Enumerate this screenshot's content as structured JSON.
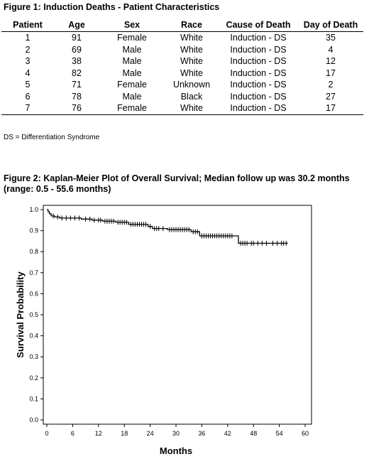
{
  "figure1": {
    "title": "Figure 1: Induction Deaths - Patient Characteristics",
    "headers": [
      "Patient",
      "Age",
      "Sex",
      "Race",
      "Cause of Death",
      "Day of Death"
    ],
    "rows": [
      [
        "1",
        "91",
        "Female",
        "White",
        "Induction - DS",
        "35"
      ],
      [
        "2",
        "69",
        "Male",
        "White",
        "Induction - DS",
        "4"
      ],
      [
        "3",
        "38",
        "Male",
        "White",
        "Induction - DS",
        "12"
      ],
      [
        "4",
        "82",
        "Male",
        "White",
        "Induction - DS",
        "17"
      ],
      [
        "5",
        "71",
        "Female",
        "Unknown",
        "Induction - DS",
        "2"
      ],
      [
        "6",
        "78",
        "Male",
        "Black",
        "Induction - DS",
        "27"
      ],
      [
        "7",
        "76",
        "Female",
        "White",
        "Induction - DS",
        "17"
      ]
    ],
    "footnote": "DS = Differentiation Syndrome"
  },
  "figure2": {
    "title": "Figure 2: Kaplan-Meier Plot of Overall Survival; Median follow up was 30.2 months (range: 0.5 - 55.6 months)"
  },
  "chart_data": {
    "type": "line",
    "xlabel": "Months",
    "ylabel": "Survival Probability",
    "xlim": [
      0,
      60
    ],
    "ylim": [
      0.0,
      1.0
    ],
    "xticks": [
      0,
      6,
      12,
      18,
      24,
      30,
      36,
      42,
      48,
      54,
      60
    ],
    "yticks": [
      "0.0",
      "0.1",
      "0.2",
      "0.3",
      "0.4",
      "0.5",
      "0.6",
      "0.7",
      "0.8",
      "0.9",
      "1.0"
    ],
    "grid": false,
    "series": [
      {
        "step_points": [
          [
            0,
            1.0
          ],
          [
            0.3,
            0.99
          ],
          [
            0.6,
            0.98
          ],
          [
            1.0,
            0.97
          ],
          [
            1.8,
            0.965
          ],
          [
            3.0,
            0.96
          ],
          [
            8.0,
            0.955
          ],
          [
            10.5,
            0.95
          ],
          [
            13.0,
            0.945
          ],
          [
            16.0,
            0.94
          ],
          [
            19.0,
            0.93
          ],
          [
            23.5,
            0.92
          ],
          [
            24.5,
            0.91
          ],
          [
            28.0,
            0.905
          ],
          [
            33.5,
            0.895
          ],
          [
            35.5,
            0.875
          ],
          [
            44.5,
            0.84
          ],
          [
            56,
            0.84
          ]
        ],
        "censor_times": [
          1.5,
          2.5,
          3.5,
          4.5,
          5.5,
          6.5,
          7.5,
          9.0,
          10.0,
          11.0,
          12.0,
          12.5,
          13.5,
          14.0,
          14.5,
          15.0,
          15.5,
          16.5,
          17.0,
          17.5,
          18.0,
          18.5,
          19.5,
          20.0,
          20.5,
          21.0,
          21.5,
          22.0,
          22.5,
          23.0,
          24.0,
          25.0,
          25.5,
          26.0,
          27.0,
          28.5,
          29.0,
          29.5,
          30.0,
          30.5,
          31.0,
          31.5,
          32.0,
          32.5,
          33.0,
          34.0,
          34.5,
          35.0,
          36.0,
          36.5,
          37.0,
          37.5,
          38.0,
          38.5,
          39.0,
          39.5,
          40.0,
          40.5,
          41.0,
          41.5,
          42.0,
          42.5,
          43.0,
          45.0,
          45.5,
          46.0,
          46.5,
          47.5,
          48.0,
          49.0,
          50.0,
          51.0,
          52.5,
          53.5,
          54.5,
          55.0,
          55.6
        ]
      }
    ]
  }
}
